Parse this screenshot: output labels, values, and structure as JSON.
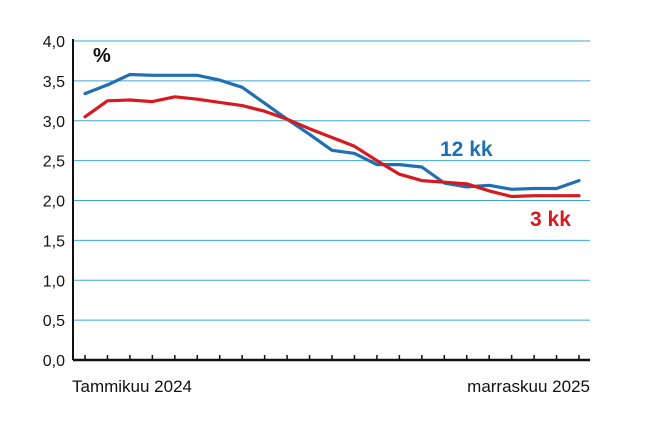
{
  "chart_data": {
    "type": "line",
    "unit": "%",
    "ylim": [
      0,
      4
    ],
    "yticks": [
      "0,0",
      "0,5",
      "1,0",
      "1,5",
      "2,0",
      "2,5",
      "3,0",
      "3,5",
      "4,0"
    ],
    "ytick_values": [
      0,
      0.5,
      1,
      1.5,
      2,
      2.5,
      3,
      3.5,
      4
    ],
    "x_start_label": "Tammikuu 2024",
    "x_end_label": "marraskuu 2025",
    "grid": true,
    "series": [
      {
        "name": "12 kk",
        "color": "#1f6fb2",
        "values": [
          3.34,
          3.45,
          3.58,
          3.57,
          3.57,
          3.57,
          3.51,
          3.42,
          3.22,
          3.02,
          2.83,
          2.63,
          2.59,
          2.45,
          2.45,
          2.42,
          2.22,
          2.17,
          2.19,
          2.14,
          2.15,
          2.15,
          2.25
        ]
      },
      {
        "name": "3 kk",
        "color": "#d71920",
        "values": [
          3.05,
          3.25,
          3.26,
          3.24,
          3.3,
          3.27,
          3.23,
          3.19,
          3.12,
          3.02,
          2.9,
          2.79,
          2.68,
          2.5,
          2.33,
          2.25,
          2.23,
          2.21,
          2.12,
          2.05,
          2.06,
          2.06,
          2.06
        ]
      }
    ]
  }
}
